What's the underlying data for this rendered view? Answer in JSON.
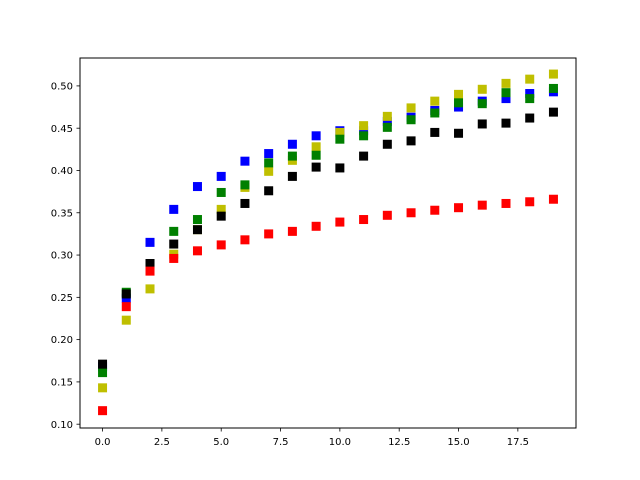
{
  "chart_data": {
    "type": "scatter",
    "title": "",
    "xlabel": "",
    "ylabel": "",
    "xlim": [
      -0.95,
      19.95
    ],
    "ylim": [
      0.0955,
      0.533
    ],
    "xticks": [
      0,
      2.5,
      5,
      7.5,
      10,
      12.5,
      15,
      17.5
    ],
    "xtick_labels": [
      "0.0",
      "2.5",
      "5.0",
      "7.5",
      "10.0",
      "12.5",
      "15.0",
      "17.5"
    ],
    "yticks": [
      0.1,
      0.15,
      0.2,
      0.25,
      0.3,
      0.35,
      0.4,
      0.45,
      0.5
    ],
    "ytick_labels": [
      "0.10",
      "0.15",
      "0.20",
      "0.25",
      "0.30",
      "0.35",
      "0.40",
      "0.45",
      "0.50"
    ],
    "grid": false,
    "marker": "square",
    "x": [
      0,
      1,
      2,
      3,
      4,
      5,
      6,
      7,
      8,
      9,
      10,
      11,
      12,
      13,
      14,
      15,
      16,
      17,
      18,
      19
    ],
    "series": [
      {
        "color": "#0000ff",
        "values": [
          0.168,
          0.249,
          0.315,
          0.354,
          0.381,
          0.393,
          0.411,
          0.42,
          0.431,
          0.441,
          0.447,
          0.447,
          0.458,
          0.463,
          0.471,
          0.475,
          0.482,
          0.485,
          0.491,
          0.493
        ]
      },
      {
        "color": "#bfbf00",
        "values": [
          0.143,
          0.223,
          0.26,
          0.301,
          0.33,
          0.354,
          0.38,
          0.399,
          0.412,
          0.428,
          0.445,
          0.453,
          0.464,
          0.474,
          0.482,
          0.49,
          0.496,
          0.503,
          0.508,
          0.514
        ]
      },
      {
        "color": "#008000",
        "values": [
          0.161,
          0.256,
          0.289,
          0.328,
          0.342,
          0.374,
          0.383,
          0.409,
          0.417,
          0.418,
          0.437,
          0.441,
          0.451,
          0.46,
          0.468,
          0.48,
          0.479,
          0.492,
          0.485,
          0.497
        ]
      },
      {
        "color": "#000000",
        "values": [
          0.171,
          0.254,
          0.29,
          0.313,
          0.33,
          0.346,
          0.361,
          0.376,
          0.393,
          0.404,
          0.403,
          0.417,
          0.431,
          0.435,
          0.445,
          0.444,
          0.455,
          0.456,
          0.462,
          0.469
        ]
      },
      {
        "color": "#ff0000",
        "values": [
          0.116,
          0.239,
          0.281,
          0.296,
          0.305,
          0.312,
          0.318,
          0.325,
          0.328,
          0.334,
          0.339,
          0.342,
          0.347,
          0.35,
          0.353,
          0.356,
          0.359,
          0.361,
          0.363,
          0.366
        ]
      }
    ]
  }
}
